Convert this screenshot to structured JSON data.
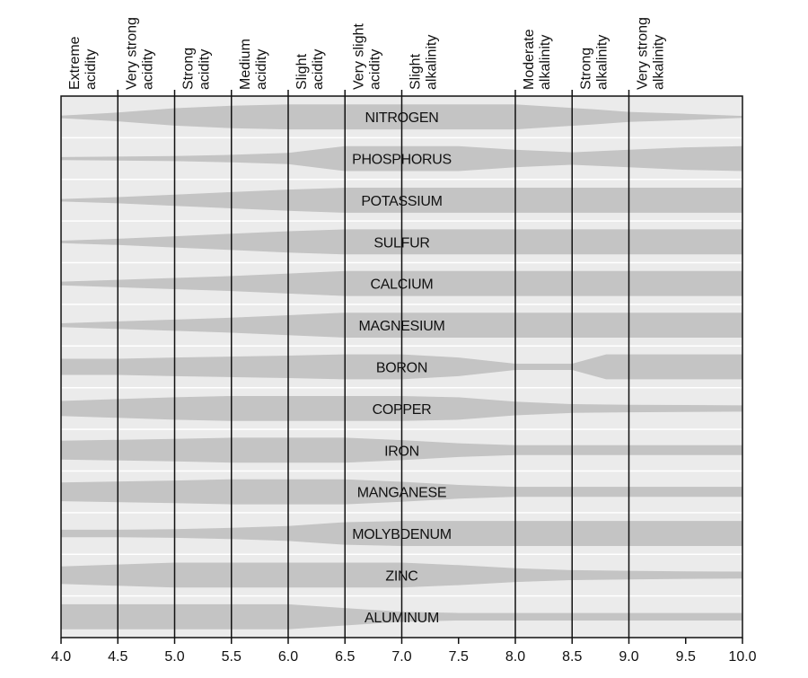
{
  "chart_data": {
    "type": "area",
    "x_ticks": [
      "4.0",
      "4.5",
      "5.0",
      "5.5",
      "6.0",
      "6.5",
      "7.0",
      "7.5",
      "8.0",
      "8.5",
      "9.0",
      "9.5",
      "10.0"
    ],
    "xlim": [
      4.0,
      10.0
    ],
    "categories": [
      {
        "from": 4.0,
        "to": 4.5,
        "lines": [
          "Extreme",
          "acidity"
        ]
      },
      {
        "from": 4.5,
        "to": 5.0,
        "lines": [
          "Very strong",
          "acidity"
        ]
      },
      {
        "from": 5.0,
        "to": 5.5,
        "lines": [
          "Strong",
          "acidity"
        ]
      },
      {
        "from": 5.5,
        "to": 6.0,
        "lines": [
          "Medium",
          "acidity"
        ]
      },
      {
        "from": 6.0,
        "to": 6.5,
        "lines": [
          "Slight",
          "acidity"
        ]
      },
      {
        "from": 6.5,
        "to": 7.0,
        "lines": [
          "Very slight",
          "acidity"
        ]
      },
      {
        "from": 7.0,
        "to": 8.0,
        "lines": [
          "Slight",
          "alkalinity"
        ]
      },
      {
        "from": 8.0,
        "to": 8.5,
        "lines": [
          "Moderate",
          "alkalinity"
        ]
      },
      {
        "from": 8.5,
        "to": 9.0,
        "lines": [
          "Strong",
          "alkalinity"
        ]
      },
      {
        "from": 9.0,
        "to": 10.0,
        "lines": [
          "Very strong",
          "alkalinity"
        ]
      }
    ],
    "band_color": "#c4c4c4",
    "background_color": "#ebebeb",
    "series": [
      {
        "name": "NITROGEN",
        "points": [
          [
            4.0,
            0.1
          ],
          [
            4.5,
            0.35
          ],
          [
            5.0,
            0.7
          ],
          [
            5.5,
            0.9
          ],
          [
            6.0,
            1.0
          ],
          [
            8.0,
            1.0
          ],
          [
            8.7,
            0.6
          ],
          [
            9.0,
            0.4
          ],
          [
            9.5,
            0.25
          ],
          [
            10.0,
            0.08
          ]
        ]
      },
      {
        "name": "PHOSPHORUS",
        "points": [
          [
            4.0,
            0.12
          ],
          [
            5.0,
            0.2
          ],
          [
            5.5,
            0.3
          ],
          [
            6.0,
            0.45
          ],
          [
            6.5,
            1.0
          ],
          [
            7.5,
            1.0
          ],
          [
            8.0,
            0.7
          ],
          [
            8.5,
            0.5
          ],
          [
            9.0,
            0.7
          ],
          [
            9.5,
            0.9
          ],
          [
            10.0,
            1.0
          ]
        ]
      },
      {
        "name": "POTASSIUM",
        "points": [
          [
            4.0,
            0.1
          ],
          [
            4.5,
            0.25
          ],
          [
            5.0,
            0.45
          ],
          [
            5.5,
            0.65
          ],
          [
            6.0,
            0.85
          ],
          [
            6.5,
            1.0
          ],
          [
            10.0,
            1.0
          ]
        ]
      },
      {
        "name": "SULFUR",
        "points": [
          [
            4.0,
            0.1
          ],
          [
            4.5,
            0.25
          ],
          [
            5.0,
            0.45
          ],
          [
            5.5,
            0.65
          ],
          [
            6.0,
            0.85
          ],
          [
            6.5,
            1.0
          ],
          [
            10.0,
            1.0
          ]
        ]
      },
      {
        "name": "CALCIUM",
        "points": [
          [
            4.0,
            0.15
          ],
          [
            4.5,
            0.3
          ],
          [
            5.0,
            0.45
          ],
          [
            5.5,
            0.6
          ],
          [
            6.0,
            0.8
          ],
          [
            6.5,
            1.0
          ],
          [
            10.0,
            1.0
          ]
        ]
      },
      {
        "name": "MAGNESIUM",
        "points": [
          [
            4.0,
            0.15
          ],
          [
            4.5,
            0.3
          ],
          [
            5.0,
            0.45
          ],
          [
            5.5,
            0.6
          ],
          [
            6.0,
            0.8
          ],
          [
            6.5,
            1.0
          ],
          [
            10.0,
            1.0
          ]
        ]
      },
      {
        "name": "BORON",
        "points": [
          [
            4.0,
            0.65
          ],
          [
            4.5,
            0.65
          ],
          [
            5.0,
            0.75
          ],
          [
            6.0,
            0.9
          ],
          [
            6.5,
            1.0
          ],
          [
            7.0,
            1.0
          ],
          [
            7.5,
            0.75
          ],
          [
            8.0,
            0.25
          ],
          [
            8.5,
            0.25
          ],
          [
            8.8,
            1.0
          ],
          [
            10.0,
            1.0
          ]
        ]
      },
      {
        "name": "COPPER",
        "points": [
          [
            4.0,
            0.6
          ],
          [
            4.5,
            0.75
          ],
          [
            5.0,
            0.9
          ],
          [
            5.5,
            1.0
          ],
          [
            7.0,
            1.0
          ],
          [
            7.5,
            0.9
          ],
          [
            8.0,
            0.55
          ],
          [
            8.5,
            0.35
          ],
          [
            9.0,
            0.3
          ],
          [
            9.5,
            0.28
          ],
          [
            10.0,
            0.25
          ]
        ]
      },
      {
        "name": "IRON",
        "points": [
          [
            4.0,
            0.75
          ],
          [
            5.0,
            0.9
          ],
          [
            5.5,
            1.0
          ],
          [
            6.5,
            1.0
          ],
          [
            7.0,
            0.8
          ],
          [
            7.5,
            0.55
          ],
          [
            8.0,
            0.4
          ],
          [
            8.5,
            0.4
          ],
          [
            10.0,
            0.4
          ]
        ]
      },
      {
        "name": "MANGANESE",
        "points": [
          [
            4.0,
            0.75
          ],
          [
            5.0,
            0.9
          ],
          [
            5.5,
            1.0
          ],
          [
            6.5,
            1.0
          ],
          [
            7.0,
            0.8
          ],
          [
            7.5,
            0.55
          ],
          [
            8.0,
            0.4
          ],
          [
            8.5,
            0.4
          ],
          [
            10.0,
            0.4
          ]
        ]
      },
      {
        "name": "MOLYBDENUM",
        "points": [
          [
            4.0,
            0.3
          ],
          [
            4.5,
            0.3
          ],
          [
            5.0,
            0.35
          ],
          [
            5.5,
            0.45
          ],
          [
            6.0,
            0.6
          ],
          [
            6.5,
            0.9
          ],
          [
            7.0,
            1.0
          ],
          [
            10.0,
            1.0
          ]
        ]
      },
      {
        "name": "ZINC",
        "points": [
          [
            4.0,
            0.7
          ],
          [
            4.5,
            0.85
          ],
          [
            5.0,
            1.0
          ],
          [
            7.0,
            1.0
          ],
          [
            7.5,
            0.8
          ],
          [
            8.0,
            0.55
          ],
          [
            8.5,
            0.4
          ],
          [
            9.0,
            0.35
          ],
          [
            9.5,
            0.3
          ],
          [
            10.0,
            0.28
          ]
        ]
      },
      {
        "name": "ALUMINUM",
        "points": [
          [
            4.0,
            1.0
          ],
          [
            6.0,
            1.0
          ],
          [
            6.5,
            0.7
          ],
          [
            7.0,
            0.4
          ],
          [
            7.5,
            0.3
          ],
          [
            8.0,
            0.3
          ],
          [
            10.0,
            0.3
          ]
        ]
      }
    ]
  }
}
